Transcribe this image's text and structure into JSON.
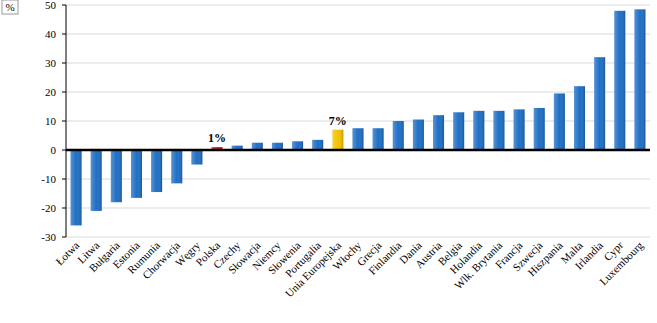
{
  "chart_data": {
    "type": "bar",
    "y_label": "%",
    "categories": [
      "Łotwa",
      "Litwa",
      "Bułgaria",
      "Estonia",
      "Rumunia",
      "Chorwacja",
      "Węgry",
      "Polska",
      "Czechy",
      "Słowacja",
      "Niemcy",
      "Słowenia",
      "Portugalia",
      "Unia Europejska",
      "Włochy",
      "Grecja",
      "Finlandia",
      "Dania",
      "Austria",
      "Belgia",
      "Holandia",
      "Wlk. Brytania",
      "Francja",
      "Szwecja",
      "Hiszpania",
      "Malta",
      "Irlandia",
      "Cypr",
      "Luxembourg"
    ],
    "values": [
      -26,
      -21,
      -18,
      -16.5,
      -14.5,
      -11.5,
      -5,
      1,
      1.5,
      2.5,
      2.5,
      3,
      3.5,
      7,
      7.5,
      7.5,
      10,
      10.5,
      12,
      13,
      13.5,
      13.5,
      14,
      14.5,
      19.5,
      22,
      32,
      48,
      48.5
    ],
    "value_labels": [
      null,
      null,
      null,
      null,
      null,
      null,
      null,
      "1%",
      null,
      null,
      null,
      null,
      null,
      "7%",
      null,
      null,
      null,
      null,
      null,
      null,
      null,
      null,
      null,
      null,
      null,
      null,
      null,
      null,
      null
    ],
    "data_labels": true,
    "colors": [
      "#1f6fc5",
      "#1f6fc5",
      "#1f6fc5",
      "#1f6fc5",
      "#1f6fc5",
      "#1f6fc5",
      "#1f6fc5",
      "#c8161d",
      "#1f6fc5",
      "#1f6fc5",
      "#1f6fc5",
      "#1f6fc5",
      "#1f6fc5",
      "#f2c200",
      "#1f6fc5",
      "#1f6fc5",
      "#1f6fc5",
      "#1f6fc5",
      "#1f6fc5",
      "#1f6fc5",
      "#1f6fc5",
      "#1f6fc5",
      "#1f6fc5",
      "#1f6fc5",
      "#1f6fc5",
      "#1f6fc5",
      "#1f6fc5",
      "#1f6fc5",
      "#1f6fc5"
    ],
    "ylim": [
      -30,
      50
    ],
    "yticks": [
      -30,
      -20,
      -10,
      0,
      10,
      20,
      30,
      40,
      50
    ],
    "grid": true
  }
}
